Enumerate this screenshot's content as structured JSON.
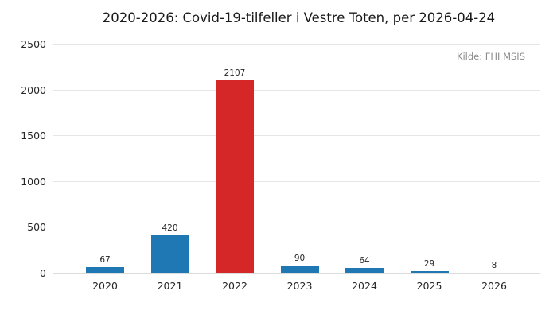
{
  "chart_data": {
    "type": "bar",
    "title": "2020-2026: Covid-19-tilfeller i Vestre Toten, per 2026-04-24",
    "source": "Kilde: FHI MSIS",
    "categories": [
      "2020",
      "2021",
      "2022",
      "2023",
      "2024",
      "2025",
      "2026"
    ],
    "values": [
      67,
      420,
      2107,
      90,
      64,
      29,
      8
    ],
    "bar_colors": [
      "#1f77b4",
      "#1f77b4",
      "#d62728",
      "#1f77b4",
      "#1f77b4",
      "#1f77b4",
      "#1f77b4"
    ],
    "value_labels": [
      "67",
      "420",
      "2107",
      "90",
      "64",
      "29",
      "8"
    ],
    "xlabel": "",
    "ylabel": "",
    "ylim": [
      0,
      2500
    ],
    "yticks": [
      0,
      500,
      1000,
      1500,
      2000,
      2500
    ],
    "grid": "horizontal",
    "legend": "none",
    "colors": {
      "bar_default": "#1f77b4",
      "bar_highlight": "#d62728",
      "gridline": "#e6e6e6",
      "baseline": "#dcdcdc",
      "title_text": "#1a1a1a",
      "tick_text": "#262626",
      "source_text": "#8c8c8c",
      "background": "#ffffff"
    }
  }
}
